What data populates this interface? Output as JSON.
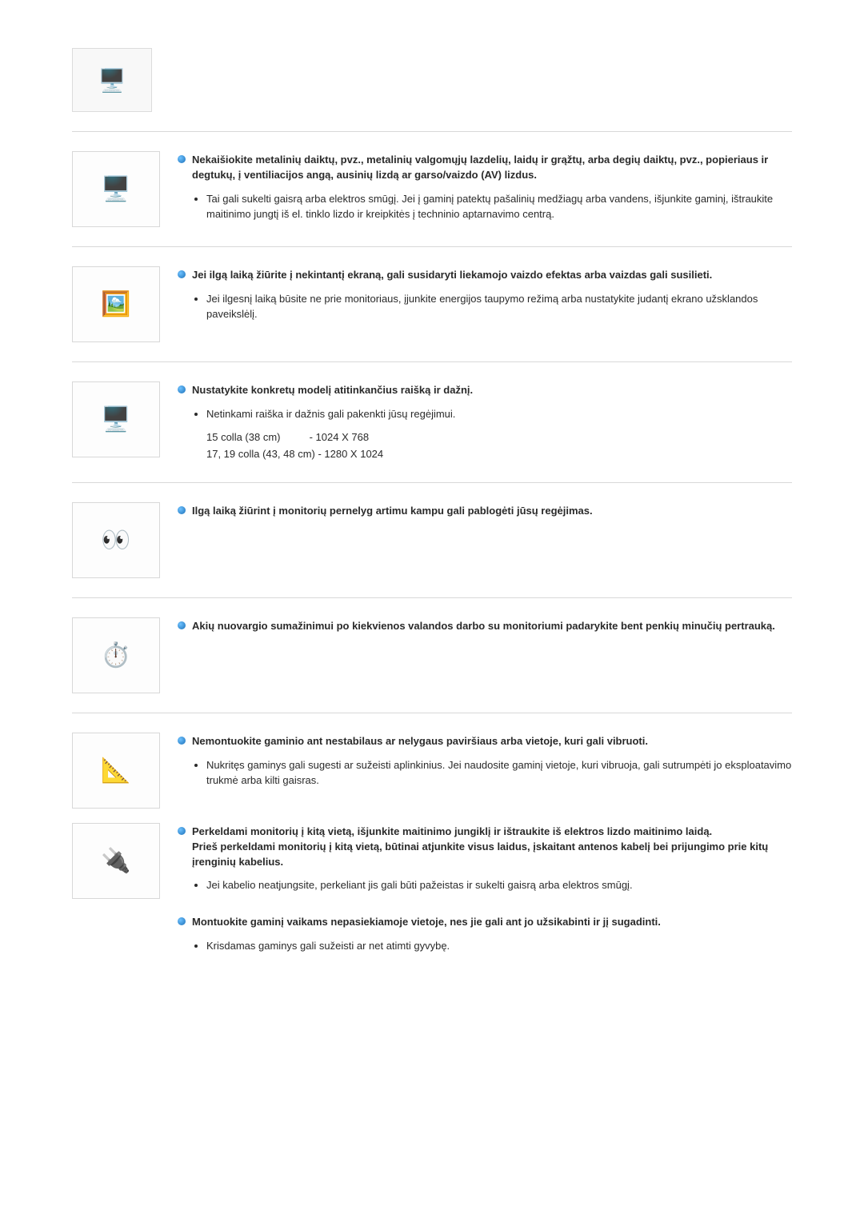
{
  "colors": {
    "text": "#2a2a2a",
    "separator": "#d8d8d8",
    "bullet_gradient_light": "#6fc2ff",
    "bullet_gradient_dark": "#1a6fb8",
    "img_border": "#d8d8d8",
    "background": "#ffffff"
  },
  "intro_icon_glyph": "🖥️",
  "items": [
    {
      "icon_glyph": "🖥️",
      "heading": "Nekaišiokite metalinių daiktų, pvz., metalinių valgomųjų lazdelių, laidų ir grąžtų, arba degių daiktų, pvz., popieriaus ir degtukų, į ventiliacijos angą, ausinių lizdą ar garso/vaizdo (AV) lizdus.",
      "details": [
        "Tai gali sukelti gaisrą arba elektros smūgį. Jei į gaminį patektų pašalinių medžiagų arba vandens, išjunkite gaminį, ištraukite maitinimo jungtį iš el. tinklo lizdo ir kreipkitės į techninio aptarnavimo centrą."
      ],
      "separator_after": true
    },
    {
      "icon_glyph": "🖼️",
      "heading": "Jei ilgą laiką žiūrite į nekintantį ekraną, gali susidaryti liekamojo vaizdo efektas arba vaizdas gali susilieti.",
      "details": [
        "Jei ilgesnį laiką būsite ne prie monitoriaus, įjunkite energijos taupymo režimą arba nustatykite judantį ekrano užsklandos paveikslėlį."
      ],
      "separator_after": true
    },
    {
      "icon_glyph": "🖥️",
      "heading": "Nustatykite konkretų modelį atitinkančius raišką ir dažnį.",
      "details": [
        "Netinkami raiška ir dažnis gali pakenkti jūsų regėjimui."
      ],
      "resolutions": {
        "line1": "15 colla (38 cm)          - 1024 X 768",
        "line2": "17, 19 colla (43, 48 cm) - 1280 X 1024"
      },
      "separator_after": true
    },
    {
      "icon_glyph": "👀",
      "heading": "Ilgą laiką žiūrint į monitorių pernelyg artimu kampu gali pablogėti jūsų regėjimas.",
      "details": [],
      "separator_after": true
    },
    {
      "icon_glyph": "⏱️",
      "heading": "Akių nuovargio sumažinimui po kiekvienos valandos darbo su monitoriumi padarykite bent penkių minučių pertrauką.",
      "details": [],
      "separator_after": true
    },
    {
      "icon_glyph": "📐",
      "heading": "Nemontuokite gaminio ant nestabilaus ar nelygaus paviršiaus arba vietoje, kuri gali vibruoti.",
      "details": [
        "Nukritęs gaminys gali sugesti ar sužeisti aplinkinius. Jei naudosite gaminį vietoje, kuri vibruoja, gali sutrumpėti jo eksploatavimo trukmė arba kilti gaisras."
      ],
      "separator_after": false
    },
    {
      "icon_glyph": "🔌",
      "heading": "Perkeldami monitorių į kitą vietą, išjunkite maitinimo jungiklį ir ištraukite iš elektros lizdo maitinimo laidą.\nPrieš perkeldami monitorių į kitą vietą, būtinai atjunkite visus laidus, įskaitant antenos kabelį bei prijungimo prie kitų įrenginių kabelius.",
      "details": [
        "Jei kabelio neatjungsite, perkeliant jis gali būti pažeistas ir sukelti gaisrą arba elektros smūgį."
      ],
      "separator_after": false
    },
    {
      "no_image": true,
      "heading": "Montuokite gaminį vaikams nepasiekiamoje vietoje, nes jie gali ant jo užsikabinti ir jį sugadinti.",
      "details": [
        "Krisdamas gaminys gali sužeisti ar net atimti gyvybę."
      ],
      "separator_after": false
    }
  ]
}
